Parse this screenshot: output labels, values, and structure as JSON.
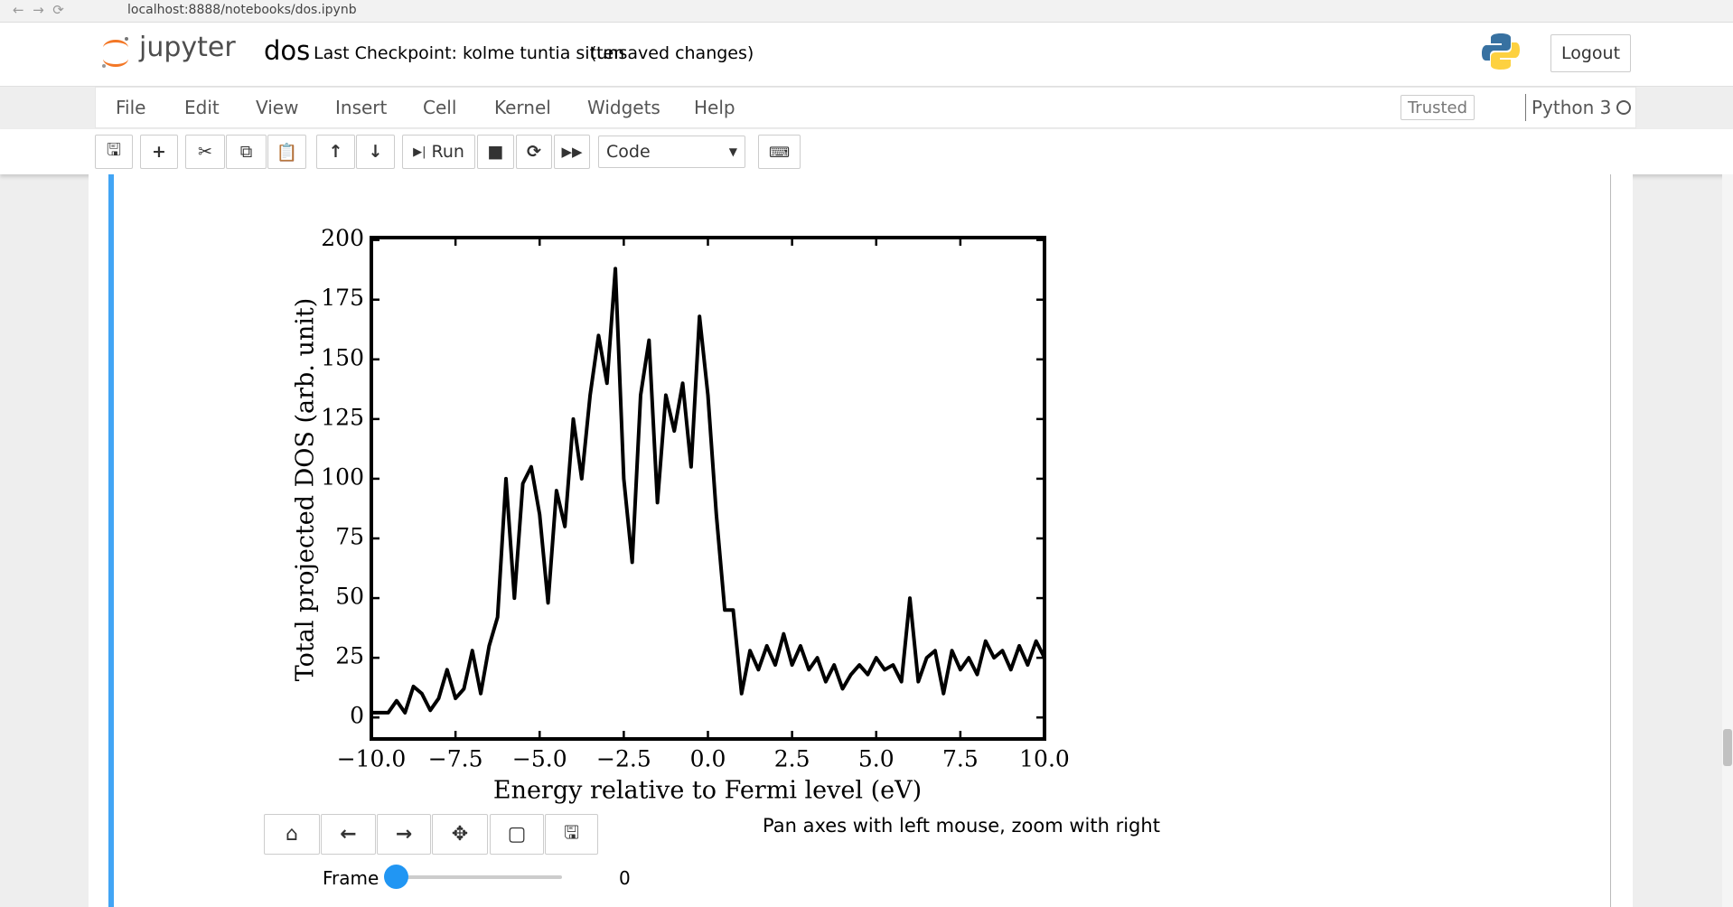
{
  "browser": {
    "url": "localhost:8888/notebooks/dos.ipynb"
  },
  "header": {
    "logo": "jupyter",
    "notebook_name": "dos",
    "checkpoint": "Last Checkpoint: kolme tuntia sitten",
    "status": "(unsaved changes)",
    "logout": "Logout"
  },
  "menu": {
    "items": [
      "File",
      "Edit",
      "View",
      "Insert",
      "Cell",
      "Kernel",
      "Widgets",
      "Help"
    ],
    "trusted": "Trusted",
    "kernel": "Python 3"
  },
  "toolbar": {
    "run": "Run",
    "cell_type": "Code"
  },
  "chart_data": {
    "type": "line",
    "x_label": "Energy relative to Fermi level (eV)",
    "y_label": "Total projected DOS (arb. unit)",
    "color": "#000000",
    "x": [
      -10,
      -9.75,
      -9.5,
      -9.25,
      -9,
      -8.75,
      -8.5,
      -8.25,
      -8,
      -7.75,
      -7.5,
      -7.25,
      -7,
      -6.75,
      -6.5,
      -6.25,
      -6,
      -5.75,
      -5.5,
      -5.25,
      -5,
      -4.75,
      -4.5,
      -4.25,
      -4,
      -3.75,
      -3.5,
      -3.25,
      -3,
      -2.75,
      -2.5,
      -2.25,
      -2,
      -1.75,
      -1.5,
      -1.25,
      -1,
      -0.75,
      -0.5,
      -0.25,
      0,
      0.25,
      0.5,
      0.75,
      1,
      1.25,
      1.5,
      1.75,
      2,
      2.25,
      2.5,
      2.75,
      3,
      3.25,
      3.5,
      3.75,
      4,
      4.25,
      4.5,
      4.75,
      5,
      5.25,
      5.5,
      5.75,
      6,
      6.25,
      6.5,
      6.75,
      7,
      7.25,
      7.5,
      7.75,
      8,
      8.25,
      8.5,
      8.75,
      9,
      9.25,
      9.5,
      9.75,
      10
    ],
    "values": [
      2,
      2,
      2,
      7,
      2,
      13,
      10,
      3,
      8,
      20,
      8,
      12,
      28,
      10,
      30,
      42,
      100,
      50,
      98,
      105,
      85,
      48,
      95,
      80,
      125,
      100,
      135,
      160,
      140,
      188,
      100,
      65,
      135,
      158,
      90,
      135,
      120,
      140,
      105,
      168,
      135,
      85,
      45,
      45,
      10,
      28,
      20,
      30,
      22,
      35,
      22,
      30,
      20,
      25,
      15,
      22,
      12,
      18,
      22,
      18,
      25,
      20,
      22,
      15,
      50,
      15,
      25,
      28,
      10,
      28,
      20,
      25,
      18,
      32,
      25,
      28,
      20,
      30,
      22,
      32,
      25
    ],
    "xlim": [
      -10,
      10
    ],
    "ylim": [
      -9,
      201
    ],
    "xticks": [
      {
        "value": -10,
        "label": "−10.0"
      },
      {
        "value": -7.5,
        "label": "−7.5"
      },
      {
        "value": -5,
        "label": "−5.0"
      },
      {
        "value": -2.5,
        "label": "−2.5"
      },
      {
        "value": 0,
        "label": "0.0"
      },
      {
        "value": 2.5,
        "label": "2.5"
      },
      {
        "value": 5,
        "label": "5.0"
      },
      {
        "value": 7.5,
        "label": "7.5"
      },
      {
        "value": 10,
        "label": "10.0"
      }
    ],
    "yticks": [
      0,
      25,
      50,
      75,
      100,
      125,
      150,
      175,
      200
    ]
  },
  "figure_toolbar": {
    "message": "Pan axes with left mouse, zoom with right"
  },
  "widget": {
    "label": "Frame",
    "value": 0
  }
}
